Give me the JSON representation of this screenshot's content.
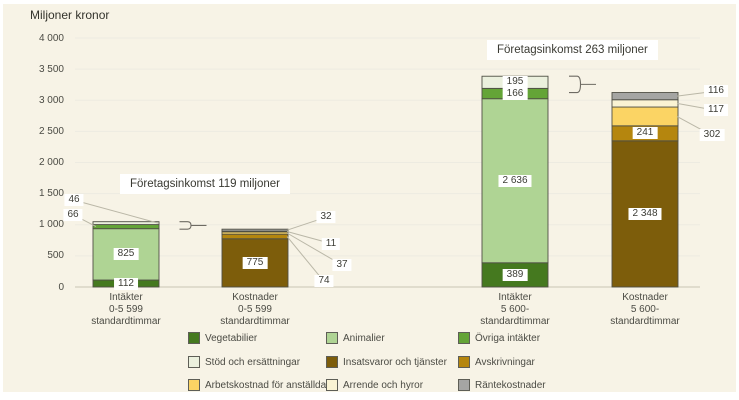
{
  "chart_data": {
    "type": "bar",
    "stacked": true,
    "title": "Miljoner kronor",
    "xlabel": "",
    "ylabel": "Miljoner kronor",
    "ylim": [
      0,
      4000
    ],
    "ytick_step": 500,
    "ytick_labels": [
      "0",
      "500",
      "1 000",
      "1 500",
      "2 000",
      "2 500",
      "3 000",
      "3 500",
      "4 000"
    ],
    "grid": true,
    "background": "#f7f3e6",
    "legend_position": "bottom",
    "categories": [
      {
        "label_lines": [
          "Intäkter",
          "0-5 599",
          "standardtimmar"
        ]
      },
      {
        "label_lines": [
          "Kostnader",
          "0-5 599",
          "standardtimmar"
        ]
      },
      {
        "label_lines": [
          "Intäkter",
          "5 600-",
          "standardtimmar"
        ]
      },
      {
        "label_lines": [
          "Kostnader",
          "5 600-",
          "standardtimmar"
        ]
      }
    ],
    "series": [
      {
        "name": "Vegetabilier",
        "color": "#45791f",
        "values": [
          112,
          null,
          389,
          null
        ]
      },
      {
        "name": "Animalier",
        "color": "#afd494",
        "values": [
          825,
          null,
          2636,
          null
        ]
      },
      {
        "name": "Övriga intäkter",
        "color": "#64a437",
        "values": [
          66,
          null,
          166,
          null
        ]
      },
      {
        "name": "Stöd och ersättningar",
        "color": "#ebf0dd",
        "values": [
          46,
          null,
          195,
          null
        ]
      },
      {
        "name": "Insatsvaror och tjänster",
        "color": "#7d5d0b",
        "values": [
          null,
          775,
          null,
          2348
        ]
      },
      {
        "name": "Avskrivningar",
        "color": "#b5860e",
        "values": [
          null,
          74,
          null,
          241
        ]
      },
      {
        "name": "Arbetskostnad för anställda",
        "color": "#fbd464",
        "values": [
          null,
          37,
          null,
          302
        ]
      },
      {
        "name": "Arrende och hyror",
        "color": "#faf3d3",
        "values": [
          null,
          11,
          null,
          117
        ]
      },
      {
        "name": "Räntekostnader",
        "color": "#a5a5a3",
        "values": [
          null,
          32,
          null,
          116
        ]
      }
    ],
    "segment_labels": [
      {
        "cat": 0,
        "series": "Vegetabilier",
        "text": "112",
        "mode": "inside"
      },
      {
        "cat": 0,
        "series": "Animalier",
        "text": "825",
        "mode": "inside"
      },
      {
        "cat": 0,
        "series": "Övriga intäkter",
        "text": "66",
        "mode": "callout",
        "dx": -53,
        "dy": -12,
        "anchor": "left"
      },
      {
        "cat": 0,
        "series": "Stöd och ersättningar",
        "text": "46",
        "mode": "callout",
        "dx": -52,
        "dy": -23,
        "anchor": "right"
      },
      {
        "cat": 1,
        "series": "Insatsvaror och tjänster",
        "text": "775",
        "mode": "inside"
      },
      {
        "cat": 1,
        "series": "Avskrivningar",
        "text": "74",
        "mode": "callout",
        "dx": 69,
        "dy": 45,
        "anchor": "right"
      },
      {
        "cat": 1,
        "series": "Arbetskostnad för anställda",
        "text": "37",
        "mode": "callout",
        "dx": 87,
        "dy": 32,
        "anchor": "right"
      },
      {
        "cat": 1,
        "series": "Arrende och hyror",
        "text": "11",
        "mode": "callout",
        "dx": 76,
        "dy": 12,
        "anchor": "right"
      },
      {
        "cat": 1,
        "series": "Räntekostnader",
        "text": "32",
        "mode": "callout",
        "dx": 71,
        "dy": -13,
        "anchor": "right"
      },
      {
        "cat": 2,
        "series": "Vegetabilier",
        "text": "389",
        "mode": "inside"
      },
      {
        "cat": 2,
        "series": "Animalier",
        "text": "2 636",
        "mode": "inside"
      },
      {
        "cat": 2,
        "series": "Övriga intäkter",
        "text": "166",
        "mode": "inside"
      },
      {
        "cat": 2,
        "series": "Stöd och ersättningar",
        "text": "195",
        "mode": "inside"
      },
      {
        "cat": 3,
        "series": "Insatsvaror och tjänster",
        "text": "2 348",
        "mode": "inside"
      },
      {
        "cat": 3,
        "series": "Avskrivningar",
        "text": "241",
        "mode": "inside"
      },
      {
        "cat": 3,
        "series": "Arbetskostnad för anställda",
        "text": "302",
        "mode": "callout",
        "dx": 67,
        "dy": 19,
        "anchor": "right"
      },
      {
        "cat": 3,
        "series": "Arrende och hyror",
        "text": "117",
        "mode": "callout",
        "dx": 71,
        "dy": 7,
        "anchor": "right"
      },
      {
        "cat": 3,
        "series": "Räntekostnader",
        "text": "116",
        "mode": "callout",
        "dx": 71,
        "dy": -5,
        "anchor": "right"
      }
    ],
    "annotations": [
      {
        "text": "Företagsinkomst 119 miljoner",
        "x": 120,
        "y": 174
      },
      {
        "text": "Företagsinkomst 263 miljoner",
        "x": 487,
        "y": 40
      }
    ],
    "braces": [
      {
        "between": [
          0,
          1
        ]
      },
      {
        "between": [
          2,
          3
        ]
      }
    ]
  }
}
